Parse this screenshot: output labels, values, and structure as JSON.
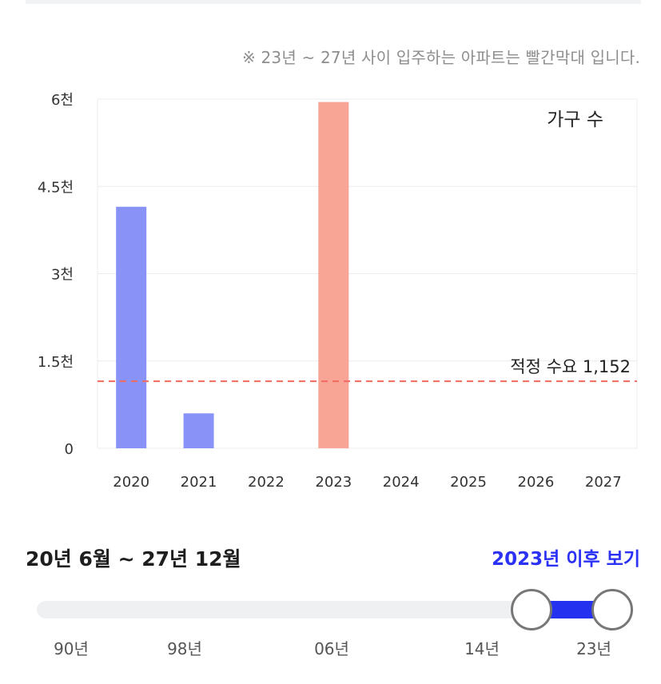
{
  "note": "※ 23년 ~ 27년 사이 입주하는 아파트는 빨간막대 입니다.",
  "chart_data": {
    "type": "bar",
    "legend_label": "가구 수",
    "categories": [
      "2020",
      "2021",
      "2022",
      "2023",
      "2024",
      "2025",
      "2026",
      "2027"
    ],
    "values": [
      4150,
      600,
      0,
      5950,
      0,
      0,
      0,
      0
    ],
    "bar_colors": [
      "#8993f7",
      "#8993f7",
      "#8993f7",
      "#f8a596",
      "#f8a596",
      "#f8a596",
      "#f8a596",
      "#f8a596"
    ],
    "ylim": [
      0,
      6000
    ],
    "y_ticks": [
      0,
      1500,
      3000,
      4500,
      6000
    ],
    "y_tick_labels": [
      "0",
      "1.5천",
      "3천",
      "4.5천",
      "6천"
    ],
    "reference_line": {
      "value": 1152,
      "label": "적정 수요 1,152",
      "color": "#f06a5f"
    },
    "grid": true,
    "legend_position": "top-right"
  },
  "period_text": "20년 6월 ~ 27년 12월",
  "after_link": "2023년 이후 보기",
  "slider": {
    "min_year": 1990,
    "max_year": 2027,
    "start_year": 2020,
    "end_year": 2027,
    "range_color": "#2432f0",
    "ticks": [
      {
        "label": "90년",
        "year": 1990
      },
      {
        "label": "98년",
        "year": 1998
      },
      {
        "label": "06년",
        "year": 2006
      },
      {
        "label": "14년",
        "year": 2014
      },
      {
        "label": "23년",
        "year": 2023
      }
    ]
  }
}
